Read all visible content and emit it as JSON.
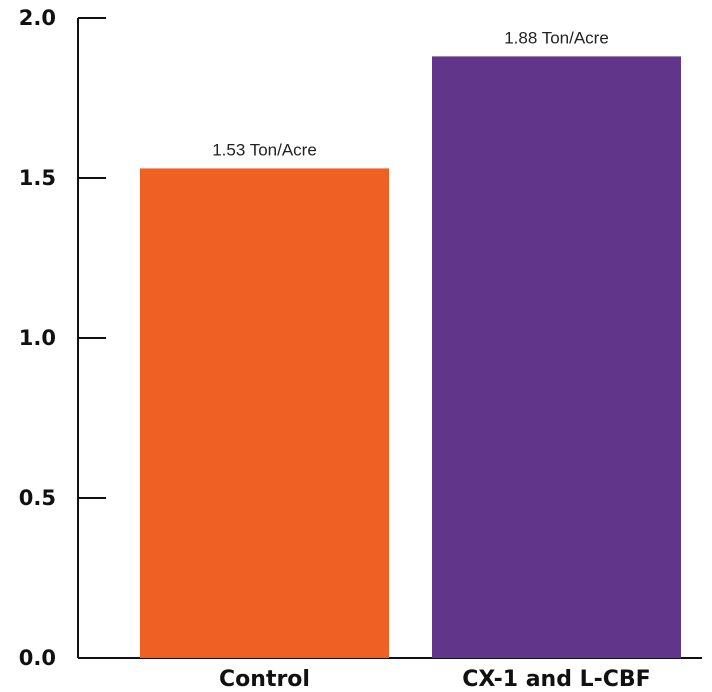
{
  "chart_data": {
    "type": "bar",
    "categories": [
      "Control",
      "CX-1 and L-CBF"
    ],
    "values": [
      1.53,
      1.88
    ],
    "data_labels": [
      "1.53 Ton/Acre",
      "1.88 Ton/Acre"
    ],
    "colors": [
      "#EF6024",
      "#60358A"
    ],
    "title": "",
    "xlabel": "",
    "ylabel": "",
    "ylim": [
      0,
      2.0
    ],
    "yticks": [
      "0.0",
      "0.5",
      "1.0",
      "1.5",
      "2.0"
    ],
    "grid": false,
    "legend": "none"
  }
}
